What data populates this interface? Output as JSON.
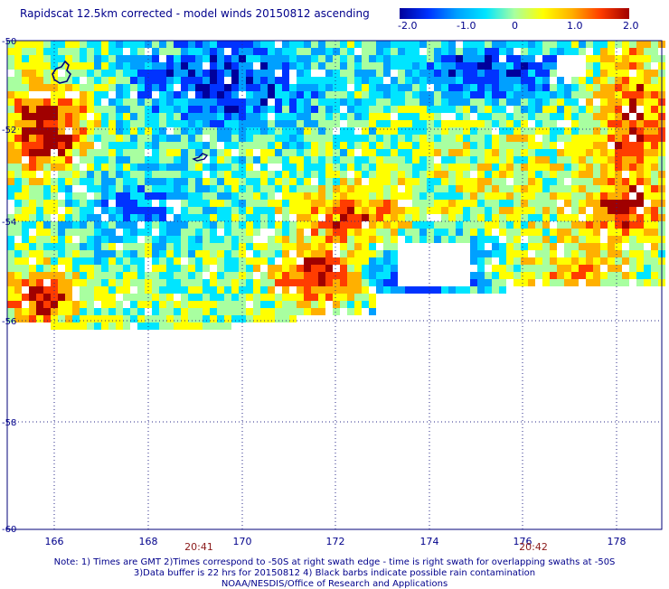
{
  "title": "Rapidscat 12.5km corrected - model winds 20150812 ascending",
  "colorbar": {
    "ticks": [
      "-2.0",
      "-1.0",
      "0",
      "1.0",
      "2.0"
    ],
    "colors": [
      "#00009c",
      "#0033ff",
      "#00a0ff",
      "#00e5ff",
      "#a8ffa0",
      "#ffff00",
      "#ffb000",
      "#ff3c00",
      "#a00000"
    ]
  },
  "map": {
    "lat_labels": [
      "-50",
      "-52",
      "-54",
      "-56",
      "-58",
      "-60"
    ],
    "lon_labels": [
      "166",
      "168",
      "170",
      "172",
      "174",
      "176",
      "178"
    ],
    "time_labels": [
      "20:41",
      "20:42"
    ]
  },
  "notes": [
    "Note: 1) Times are GMT 2)Times correspond to -50S at right swath edge - time is right swath for overlapping swaths at -50S",
    "3)Data buffer is 22 hrs for 20150812 4) Black barbs indicate possible rain contamination",
    "NOAA/NESDIS/Office of Research and Applications"
  ]
}
